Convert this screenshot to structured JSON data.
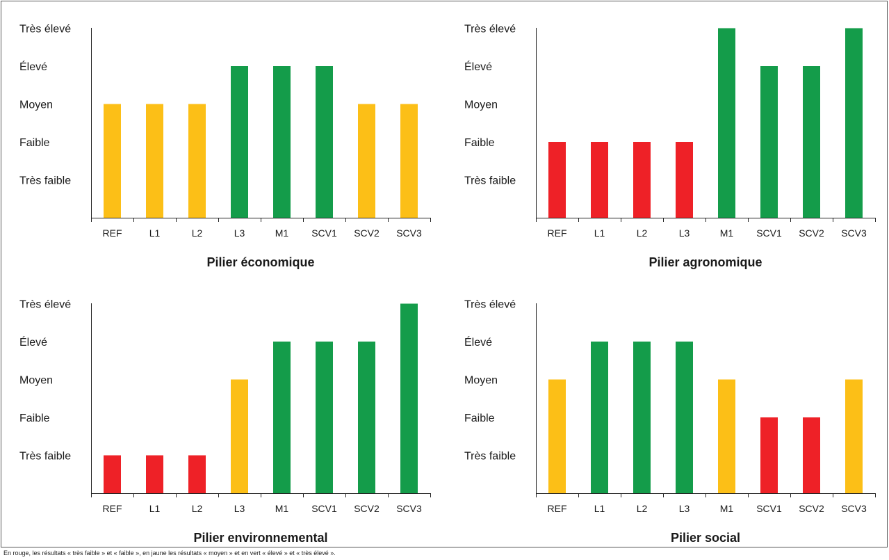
{
  "chart_data": [
    {
      "type": "bar",
      "title": "Pilier économique",
      "categories": [
        "REF",
        "L1",
        "L2",
        "L3",
        "M1",
        "SCV1",
        "SCV2",
        "SCV3"
      ],
      "values": [
        3,
        3,
        3,
        4,
        4,
        4,
        3,
        3
      ],
      "y_levels": [
        "Très faible",
        "Faible",
        "Moyen",
        "Élevé",
        "Très élevé"
      ],
      "ylim": [
        0,
        5
      ]
    },
    {
      "type": "bar",
      "title": "Pilier agronomique",
      "categories": [
        "REF",
        "L1",
        "L2",
        "L3",
        "M1",
        "SCV1",
        "SCV2",
        "SCV3"
      ],
      "values": [
        2,
        2,
        2,
        2,
        5,
        4,
        4,
        5
      ],
      "y_levels": [
        "Très faible",
        "Faible",
        "Moyen",
        "Élevé",
        "Très élevé"
      ],
      "ylim": [
        0,
        5
      ]
    },
    {
      "type": "bar",
      "title": "Pilier environnemental",
      "categories": [
        "REF",
        "L1",
        "L2",
        "L3",
        "M1",
        "SCV1",
        "SCV2",
        "SCV3"
      ],
      "values": [
        1,
        1,
        1,
        3,
        4,
        4,
        4,
        5
      ],
      "y_levels": [
        "Très faible",
        "Faible",
        "Moyen",
        "Élevé",
        "Très élevé"
      ],
      "ylim": [
        0,
        5
      ]
    },
    {
      "type": "bar",
      "title": "Pilier social",
      "categories": [
        "REF",
        "L1",
        "L2",
        "L3",
        "M1",
        "SCV1",
        "SCV2",
        "SCV3"
      ],
      "values": [
        3,
        4,
        4,
        4,
        3,
        2,
        2,
        3
      ],
      "y_levels": [
        "Très faible",
        "Faible",
        "Moyen",
        "Élevé",
        "Très élevé"
      ],
      "ylim": [
        0,
        5
      ]
    }
  ],
  "colors": {
    "red": "#ee2127",
    "yellow": "#fcbf17",
    "green": "#149c4a"
  },
  "caption": "En rouge, les résultats « très faible » et « faible », en jaune les résultats « moyen » et en vert « élevé » et « très élevé »."
}
